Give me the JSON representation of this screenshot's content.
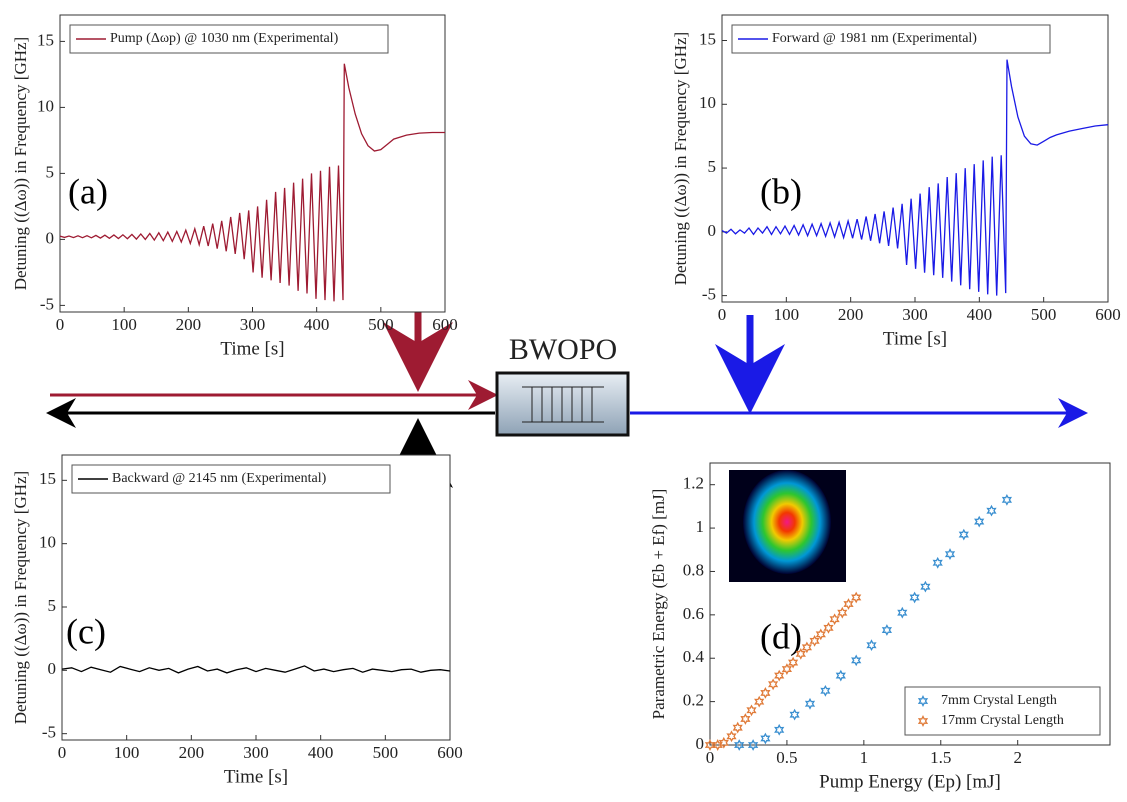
{
  "chart_data": [
    {
      "type": "line",
      "annotation": "(a)",
      "xlabel": "Time [s]",
      "ylabel": "Detuning ((Δω)) in Frequency [GHz]",
      "xlim": [
        0,
        600
      ],
      "ylim": [
        -5.5,
        17
      ],
      "xticks": [
        0,
        100,
        200,
        300,
        400,
        500,
        600
      ],
      "yticks": [
        -5,
        0,
        5,
        10,
        15
      ],
      "legend": "upper left",
      "x": [
        0,
        7,
        14,
        21,
        28,
        35,
        42,
        49,
        56,
        63,
        70,
        77,
        84,
        91,
        98,
        105,
        112,
        119,
        126,
        133,
        140,
        147,
        154,
        161,
        168,
        175,
        182,
        189,
        196,
        203,
        210,
        217,
        224,
        231,
        238,
        245,
        252,
        259,
        266,
        273,
        280,
        287,
        294,
        301,
        308,
        315,
        322,
        329,
        336,
        343,
        350,
        357,
        364,
        371,
        378,
        385,
        392,
        399,
        406,
        413,
        420,
        427,
        434,
        441,
        443,
        450,
        460,
        470,
        480,
        490,
        500,
        510,
        520,
        540,
        560,
        580,
        600
      ],
      "series": [
        {
          "name": "Pump (Δωp) @ 1030 nm (Experimental)",
          "color": "#9e1b32",
          "values": [
            0.25,
            0.15,
            0.26,
            0.14,
            0.27,
            0.13,
            0.28,
            0.12,
            0.3,
            0.1,
            0.32,
            0.08,
            0.33,
            0.07,
            0.35,
            0.05,
            0.38,
            0.02,
            0.41,
            0,
            0.45,
            -0.05,
            0.5,
            -0.1,
            0.55,
            -0.15,
            0.6,
            -0.2,
            0.7,
            -0.3,
            0.8,
            -0.4,
            1,
            -0.5,
            1.2,
            -0.7,
            1.4,
            -0.9,
            1.7,
            -1.1,
            2,
            -1.5,
            2.2,
            -2.5,
            2.5,
            -2.9,
            3,
            -3.1,
            3.6,
            -3.3,
            3.9,
            -3.5,
            4.3,
            -3.9,
            4.6,
            -4.1,
            5,
            -4.5,
            5.2,
            -4.6,
            5.5,
            -4.7,
            5.6,
            -4.6,
            13.3,
            11.5,
            9.5,
            8,
            7.1,
            6.7,
            6.8,
            7.2,
            7.6,
            7.9,
            8.05,
            8.1,
            8.1
          ]
        }
      ]
    },
    {
      "type": "line",
      "annotation": "(b)",
      "xlabel": "Time [s]",
      "ylabel": "Detuning ((Δω)) in Frequency [GHz]",
      "xlim": [
        0,
        600
      ],
      "ylim": [
        -5.5,
        17
      ],
      "xticks": [
        0,
        100,
        200,
        300,
        400,
        500,
        600
      ],
      "yticks": [
        -5,
        0,
        5,
        10,
        15
      ],
      "legend": "upper left",
      "x": [
        0,
        7,
        14,
        21,
        28,
        35,
        42,
        49,
        56,
        63,
        70,
        77,
        84,
        91,
        98,
        105,
        112,
        119,
        126,
        133,
        140,
        147,
        154,
        161,
        168,
        175,
        182,
        189,
        196,
        203,
        210,
        217,
        224,
        231,
        238,
        245,
        252,
        259,
        266,
        273,
        280,
        287,
        294,
        301,
        308,
        315,
        322,
        329,
        336,
        343,
        350,
        357,
        364,
        371,
        378,
        385,
        392,
        399,
        406,
        413,
        420,
        427,
        434,
        441,
        443,
        450,
        460,
        470,
        480,
        490,
        500,
        510,
        520,
        540,
        560,
        580,
        600
      ],
      "series": [
        {
          "name": "Forward @ 1981 nm (Experimental)",
          "color": "#1a1ae6",
          "values": [
            0.1,
            -0.1,
            0.2,
            -0.15,
            0.15,
            -0.1,
            0.3,
            -0.2,
            0.3,
            -0.1,
            0.4,
            -0.2,
            0.4,
            -0.15,
            0.45,
            -0.2,
            0.5,
            -0.25,
            0.55,
            -0.3,
            0.6,
            -0.3,
            0.65,
            -0.35,
            0.7,
            -0.4,
            0.75,
            -0.45,
            0.85,
            -0.5,
            1,
            -0.6,
            1.2,
            -0.7,
            1.4,
            -0.9,
            1.6,
            -1.1,
            1.9,
            -1.3,
            2.2,
            -2.6,
            2.6,
            -2.9,
            3,
            -3.2,
            3.5,
            -3.4,
            3.8,
            -3.6,
            4.3,
            -3.9,
            4.6,
            -4.2,
            5,
            -4.5,
            5.3,
            -4.7,
            5.6,
            -4.9,
            5.9,
            -5,
            6,
            -4.8,
            13.5,
            11.4,
            9,
            7.5,
            6.9,
            6.8,
            7.1,
            7.4,
            7.6,
            7.9,
            8.1,
            8.3,
            8.4
          ]
        }
      ]
    },
    {
      "type": "line",
      "annotation": "(c)",
      "xlabel": "Time [s]",
      "ylabel": "Detuning ((Δω)) in Frequency [GHz]",
      "xlim": [
        0,
        600
      ],
      "ylim": [
        -5.5,
        17
      ],
      "xticks": [
        0,
        100,
        200,
        300,
        400,
        500,
        600
      ],
      "yticks": [
        -5,
        0,
        5,
        10,
        15
      ],
      "legend": "upper left",
      "x": [
        0,
        15,
        30,
        45,
        60,
        75,
        90,
        105,
        120,
        135,
        150,
        165,
        180,
        195,
        210,
        225,
        240,
        255,
        270,
        285,
        300,
        315,
        330,
        345,
        360,
        375,
        390,
        405,
        420,
        435,
        450,
        465,
        480,
        495,
        510,
        525,
        540,
        555,
        570,
        585,
        600
      ],
      "series": [
        {
          "name": "Backward @ 2145 nm (Experimental)",
          "color": "#000000",
          "values": [
            0.1,
            0.2,
            -0.1,
            0.25,
            0.05,
            -0.15,
            0.3,
            0.1,
            -0.1,
            0.2,
            0,
            0.15,
            -0.2,
            0.1,
            0.3,
            -0.05,
            0.1,
            -0.2,
            0.05,
            0.2,
            -0.1,
            0.15,
            0,
            -0.15,
            0.1,
            0.35,
            -0.05,
            0.1,
            -0.1,
            0.05,
            0.15,
            -0.15,
            0.1,
            0,
            -0.1,
            0.05,
            0.1,
            -0.15,
            0,
            0.05,
            -0.05
          ]
        }
      ]
    },
    {
      "type": "scatter",
      "annotation": "(d)",
      "xlabel": "Pump Energy (Ep)  [mJ]",
      "ylabel": "Parametric Energy (Eb + Ef) [mJ]",
      "xlim": [
        0,
        2.6
      ],
      "ylim": [
        0,
        1.3
      ],
      "xticks": [
        0,
        0.5,
        1,
        1.5,
        2
      ],
      "yticks": [
        0,
        0.2,
        0.4,
        0.6,
        0.8,
        1,
        1.2
      ],
      "legend": "lower right",
      "series": [
        {
          "name": "7mm Crystal Length",
          "color": "#3a8fd0",
          "x": [
            0.19,
            0.28,
            0.36,
            0.45,
            0.55,
            0.65,
            0.75,
            0.85,
            0.95,
            1.05,
            1.15,
            1.25,
            1.33,
            1.4,
            1.48,
            1.56,
            1.65,
            1.75,
            1.83,
            1.93
          ],
          "values": [
            0,
            0,
            0.03,
            0.07,
            0.14,
            0.19,
            0.25,
            0.32,
            0.39,
            0.46,
            0.53,
            0.61,
            0.68,
            0.73,
            0.84,
            0.88,
            0.97,
            1.03,
            1.08,
            1.13
          ]
        },
        {
          "name": "17mm Crystal Length",
          "color": "#e07b39",
          "x": [
            0,
            0.05,
            0.09,
            0.14,
            0.18,
            0.23,
            0.27,
            0.32,
            0.36,
            0.41,
            0.45,
            0.5,
            0.54,
            0.59,
            0.63,
            0.68,
            0.72,
            0.77,
            0.81,
            0.86,
            0.9,
            0.95
          ],
          "values": [
            0,
            0,
            0.01,
            0.04,
            0.08,
            0.12,
            0.16,
            0.2,
            0.24,
            0.28,
            0.32,
            0.35,
            0.38,
            0.42,
            0.45,
            0.48,
            0.51,
            0.54,
            0.58,
            0.61,
            0.65,
            0.68
          ]
        }
      ]
    }
  ],
  "diagram": {
    "label": "BWOPO"
  }
}
